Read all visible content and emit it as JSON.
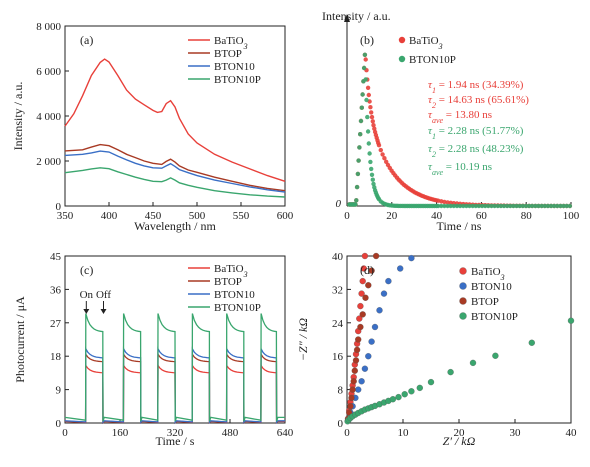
{
  "chart_data": [
    {
      "type": "line",
      "panel_label": "(a)",
      "xlabel": "Wavelength / nm",
      "ylabel": "Intensity / a.u.",
      "xlim": [
        350,
        600
      ],
      "ylim": [
        0,
        8000
      ],
      "xticks": [
        "350",
        "400",
        "450",
        "500",
        "550",
        "600"
      ],
      "yticks": [
        "0",
        "2 000",
        "4 000",
        "6 000",
        "8 000"
      ],
      "legend_position": "top-right",
      "series": [
        {
          "name": "BaTiO",
          "name_sub": "3",
          "color": "#e8403a",
          "points": [
            [
              350,
              3550
            ],
            [
              360,
              4100
            ],
            [
              370,
              4900
            ],
            [
              380,
              5800
            ],
            [
              390,
              6380
            ],
            [
              395,
              6530
            ],
            [
              400,
              6400
            ],
            [
              410,
              5800
            ],
            [
              420,
              5150
            ],
            [
              430,
              4750
            ],
            [
              440,
              4500
            ],
            [
              450,
              4250
            ],
            [
              455,
              4160
            ],
            [
              460,
              4200
            ],
            [
              465,
              4550
            ],
            [
              470,
              4680
            ],
            [
              475,
              4400
            ],
            [
              480,
              3900
            ],
            [
              490,
              3200
            ],
            [
              500,
              2800
            ],
            [
              520,
              2300
            ],
            [
              540,
              1950
            ],
            [
              560,
              1650
            ],
            [
              580,
              1350
            ],
            [
              600,
              1100
            ]
          ]
        },
        {
          "name": "BTOP",
          "color": "#a83a24",
          "points": [
            [
              350,
              2450
            ],
            [
              370,
              2500
            ],
            [
              380,
              2620
            ],
            [
              390,
              2730
            ],
            [
              400,
              2680
            ],
            [
              410,
              2500
            ],
            [
              420,
              2300
            ],
            [
              430,
              2150
            ],
            [
              440,
              2000
            ],
            [
              450,
              1900
            ],
            [
              460,
              1850
            ],
            [
              465,
              1980
            ],
            [
              470,
              2080
            ],
            [
              475,
              1950
            ],
            [
              480,
              1780
            ],
            [
              490,
              1600
            ],
            [
              500,
              1500
            ],
            [
              520,
              1280
            ],
            [
              540,
              1100
            ],
            [
              560,
              920
            ],
            [
              580,
              780
            ],
            [
              600,
              680
            ]
          ]
        },
        {
          "name": "BTON10",
          "color": "#3a6fc6",
          "points": [
            [
              350,
              2250
            ],
            [
              370,
              2300
            ],
            [
              380,
              2360
            ],
            [
              390,
              2440
            ],
            [
              400,
              2400
            ],
            [
              410,
              2220
            ],
            [
              420,
              2050
            ],
            [
              430,
              1900
            ],
            [
              440,
              1780
            ],
            [
              450,
              1700
            ],
            [
              460,
              1680
            ],
            [
              465,
              1780
            ],
            [
              470,
              1880
            ],
            [
              475,
              1760
            ],
            [
              480,
              1620
            ],
            [
              490,
              1480
            ],
            [
              500,
              1350
            ],
            [
              520,
              1150
            ],
            [
              540,
              1000
            ],
            [
              560,
              850
            ],
            [
              580,
              720
            ],
            [
              600,
              620
            ]
          ]
        },
        {
          "name": "BTON10P",
          "color": "#3aa66e",
          "points": [
            [
              350,
              1480
            ],
            [
              370,
              1580
            ],
            [
              380,
              1650
            ],
            [
              390,
              1700
            ],
            [
              400,
              1660
            ],
            [
              410,
              1520
            ],
            [
              420,
              1400
            ],
            [
              430,
              1280
            ],
            [
              440,
              1180
            ],
            [
              450,
              1100
            ],
            [
              460,
              1080
            ],
            [
              465,
              1150
            ],
            [
              470,
              1250
            ],
            [
              475,
              1150
            ],
            [
              480,
              1030
            ],
            [
              490,
              920
            ],
            [
              500,
              830
            ],
            [
              520,
              680
            ],
            [
              540,
              580
            ],
            [
              560,
              500
            ],
            [
              580,
              440
            ],
            [
              600,
              400
            ]
          ]
        }
      ]
    },
    {
      "type": "scatter",
      "panel_label": "(b)",
      "xlabel": "Time / ns",
      "ylabel": "Intensity / a.u.",
      "xlim": [
        0,
        100
      ],
      "xticks": [
        "0",
        "20",
        "40",
        "60",
        "80",
        "100"
      ],
      "yticks": [
        "0"
      ],
      "legend_position": "top-left",
      "series": [
        {
          "name": "BaTiO",
          "name_sub": "3",
          "color": "#e8403a",
          "tau1": 1.94,
          "tau2": 14.63,
          "a1": 34.39,
          "a2": 65.61,
          "tave": 13.8
        },
        {
          "name": "BTON10P",
          "color": "#3aa66e",
          "tau1": 2.28,
          "tau2": 2.28,
          "a1": 51.77,
          "a2": 48.23,
          "tave": 10.19
        }
      ],
      "annotations": [
        {
          "sym": "τ",
          "sub": "1",
          "text": " = 1.94 ns (34.39%)",
          "color": "#e8403a"
        },
        {
          "sym": "τ",
          "sub": "2",
          "text": " = 14.63 ns (65.61%)",
          "color": "#e8403a"
        },
        {
          "sym": "τ",
          "sub": "ave",
          "text": " = 13.80 ns",
          "color": "#e8403a"
        },
        {
          "sym": "τ",
          "sub": "1",
          "text": " = 2.28 ns (51.77%)",
          "color": "#3aa66e"
        },
        {
          "sym": "τ",
          "sub": "2",
          "text": " = 2.28 ns (48.23%)",
          "color": "#3aa66e"
        },
        {
          "sym": "τ",
          "sub": "ave",
          "text": " = 10.19 ns",
          "color": "#3aa66e"
        }
      ]
    },
    {
      "type": "line",
      "panel_label": "(c)",
      "xlabel": "Time / s",
      "ylabel": "Photocurrent / μA",
      "xlim": [
        0,
        640
      ],
      "ylim": [
        0,
        45
      ],
      "xticks": [
        "0",
        "160",
        "320",
        "480",
        "640"
      ],
      "yticks": [
        "0",
        "9",
        "18",
        "27",
        "36",
        "45"
      ],
      "legend_position": "top-right",
      "annotations": [
        {
          "text": "On",
          "x": 62
        },
        {
          "text": "Off",
          "x": 112
        }
      ],
      "on_intervals": [
        [
          60,
          110
        ],
        [
          170,
          220
        ],
        [
          270,
          320
        ],
        [
          370,
          420
        ],
        [
          470,
          520
        ],
        [
          570,
          615
        ]
      ],
      "series": [
        {
          "name": "BaTiO",
          "name_sub": "3",
          "color": "#e8403a",
          "on_level": 13.5,
          "peak": 15.5,
          "dark": 0.4
        },
        {
          "name": "BTOP",
          "color": "#a83a24",
          "on_level": 16.5,
          "peak": 18.5,
          "dark": 0.5
        },
        {
          "name": "BTON10",
          "color": "#3a6fc6",
          "on_level": 17.5,
          "peak": 20.0,
          "dark": 0.6
        },
        {
          "name": "BTON10P",
          "color": "#3aa66e",
          "on_level": 24.5,
          "peak": 29.5,
          "dark": 1.5
        }
      ]
    },
    {
      "type": "scatter",
      "panel_label": "(d)",
      "xlabel": "Z′ / kΩ",
      "ylabel": "−Z″ / kΩ",
      "xlim": [
        0,
        40
      ],
      "ylim": [
        0,
        40
      ],
      "xticks": [
        "0",
        "10",
        "20",
        "30",
        "40"
      ],
      "yticks": [
        "0",
        "8",
        "16",
        "24",
        "32",
        "40"
      ],
      "legend_position": "top-right",
      "series": [
        {
          "name": "BaTiO",
          "name_sub": "3",
          "color": "#e8403a",
          "points": [
            [
              0.2,
              1
            ],
            [
              0.4,
              3
            ],
            [
              0.6,
              5
            ],
            [
              0.8,
              7
            ],
            [
              1.0,
              9
            ],
            [
              1.2,
              11
            ],
            [
              1.4,
              14
            ],
            [
              1.6,
              16.5
            ],
            [
              1.8,
              19
            ],
            [
              2.0,
              22
            ],
            [
              2.2,
              25
            ],
            [
              2.4,
              28
            ],
            [
              2.6,
              31
            ],
            [
              2.8,
              34
            ],
            [
              3.0,
              37
            ],
            [
              3.2,
              40
            ]
          ]
        },
        {
          "name": "BTON10",
          "color": "#3a6fc6",
          "points": [
            [
              0.3,
              1
            ],
            [
              0.6,
              2.5
            ],
            [
              1.0,
              4
            ],
            [
              1.5,
              6
            ],
            [
              2.0,
              8
            ],
            [
              2.6,
              10
            ],
            [
              3.2,
              13
            ],
            [
              3.8,
              16
            ],
            [
              4.4,
              19.5
            ],
            [
              5.0,
              23
            ],
            [
              5.8,
              27
            ],
            [
              6.6,
              31
            ],
            [
              7.4,
              34
            ],
            [
              9.5,
              37
            ],
            [
              11.5,
              39.5
            ]
          ]
        },
        {
          "name": "BTOP",
          "color": "#a83a24",
          "points": [
            [
              0.2,
              1
            ],
            [
              0.4,
              2.5
            ],
            [
              0.6,
              4
            ],
            [
              0.8,
              6
            ],
            [
              1.0,
              8
            ],
            [
              1.2,
              10
            ],
            [
              1.4,
              12.5
            ],
            [
              1.6,
              15
            ],
            [
              1.8,
              17.5
            ],
            [
              2.0,
              20
            ],
            [
              2.4,
              23
            ],
            [
              2.8,
              26
            ],
            [
              3.3,
              30
            ],
            [
              3.8,
              33
            ],
            [
              4.4,
              36.5
            ],
            [
              5.2,
              40
            ]
          ]
        },
        {
          "name": "BTON10P",
          "color": "#3aa66e",
          "points": [
            [
              0.1,
              0.4
            ],
            [
              0.3,
              0.8
            ],
            [
              0.6,
              1.2
            ],
            [
              1.0,
              1.6
            ],
            [
              1.5,
              2.0
            ],
            [
              2.0,
              2.4
            ],
            [
              2.6,
              2.8
            ],
            [
              3.2,
              3.2
            ],
            [
              3.8,
              3.5
            ],
            [
              4.4,
              3.8
            ],
            [
              5.0,
              4.1
            ],
            [
              5.8,
              4.5
            ],
            [
              6.6,
              4.9
            ],
            [
              7.4,
              5.3
            ],
            [
              8.2,
              5.7
            ],
            [
              9.2,
              6.2
            ],
            [
              10.3,
              6.9
            ],
            [
              11.5,
              7.6
            ],
            [
              13.0,
              8.4
            ],
            [
              15.0,
              9.8
            ],
            [
              18.5,
              12.2
            ],
            [
              22.5,
              14.4
            ],
            [
              26.5,
              16.1
            ],
            [
              33.0,
              19.2
            ],
            [
              40.0,
              24.5
            ]
          ]
        }
      ]
    }
  ]
}
